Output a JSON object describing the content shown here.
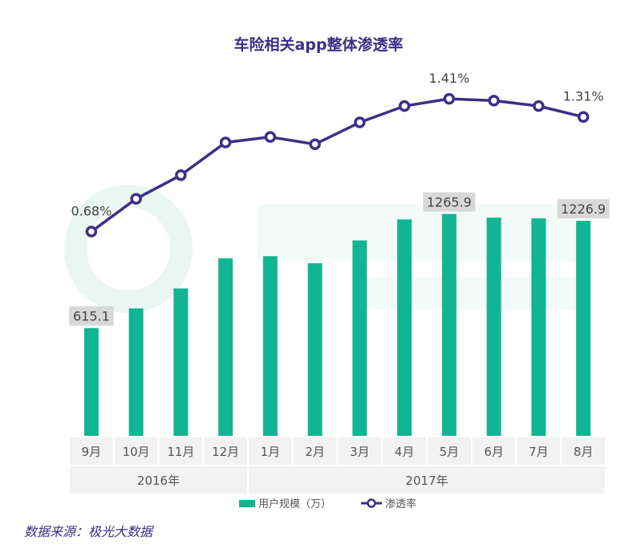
{
  "source_note": "数据来源：极光大数据",
  "colors": {
    "bar": "#12b593",
    "line": "#3d2f86",
    "title": "#3d2f86"
  },
  "chart_data": {
    "type": "bar",
    "title": "车险相关app整体渗透率",
    "categories": [
      "9月",
      "10月",
      "11月",
      "12月",
      "1月",
      "2月",
      "3月",
      "4月",
      "5月",
      "6月",
      "7月",
      "8月"
    ],
    "year_groups": [
      {
        "label": "2016年",
        "span": 4
      },
      {
        "label": "2017年",
        "span": 8
      }
    ],
    "series": [
      {
        "name": "用户规模（万）",
        "kind": "bar",
        "values": [
          615.1,
          727,
          841,
          1013,
          1025,
          985,
          1115,
          1235,
          1265.9,
          1245,
          1241,
          1226.9
        ],
        "labeled_indices": [
          0,
          8,
          11
        ]
      },
      {
        "name": "渗透率",
        "kind": "line",
        "unit": "%",
        "values": [
          0.68,
          0.86,
          0.99,
          1.17,
          1.2,
          1.16,
          1.28,
          1.37,
          1.41,
          1.4,
          1.37,
          1.31
        ],
        "labeled_indices": [
          0,
          8,
          11
        ]
      }
    ],
    "bar_ylim": [
      0,
      1800
    ],
    "line_ylim": [
      0.1,
      1.6
    ],
    "legend_position": "bottom"
  }
}
